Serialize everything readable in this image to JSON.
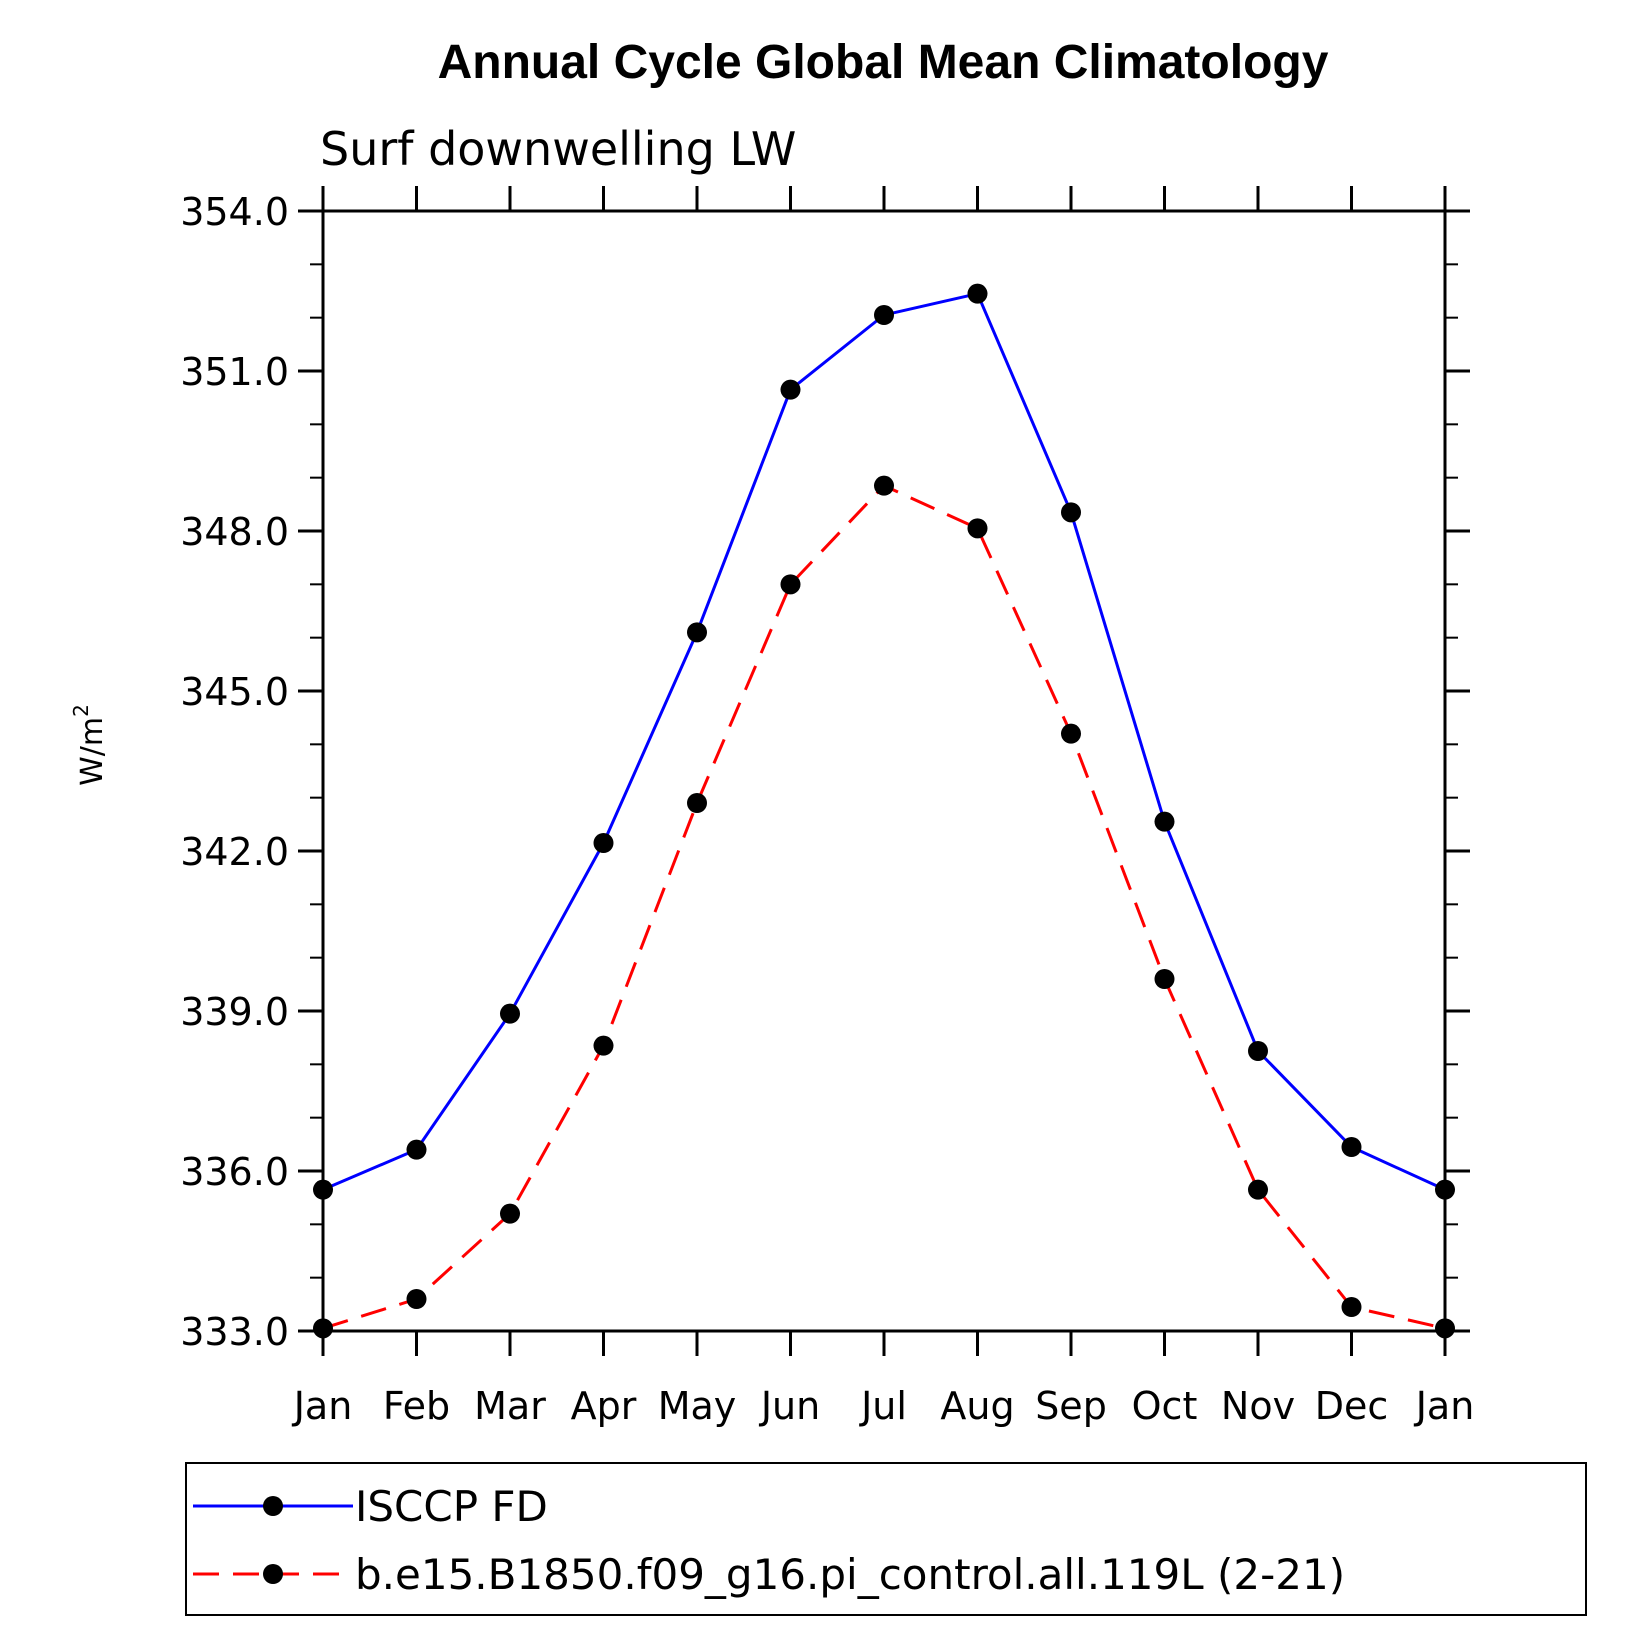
{
  "chart_data": {
    "type": "line",
    "title": "Annual Cycle Global Mean Climatology",
    "subtitle": "Surf downwelling LW",
    "ylabel": "W/m",
    "ylabel_superscript": "2",
    "xlabel": "",
    "categories": [
      "Jan",
      "Feb",
      "Mar",
      "Apr",
      "May",
      "Jun",
      "Jul",
      "Aug",
      "Sep",
      "Oct",
      "Nov",
      "Dec",
      "Jan"
    ],
    "ylim": [
      333.0,
      354.0
    ],
    "yticks": [
      "333.0",
      "336.0",
      "339.0",
      "342.0",
      "345.0",
      "348.0",
      "351.0",
      "354.0"
    ],
    "yticks_values": [
      333,
      336,
      339,
      342,
      345,
      348,
      351,
      354
    ],
    "y_minor_step": 1,
    "grid": false,
    "legend_position": "bottom",
    "series": [
      {
        "name": "ISCCP FD",
        "color": "#0000ff",
        "dash": "solid",
        "marker": "filled-circle",
        "values": [
          335.65,
          336.4,
          338.95,
          342.15,
          346.1,
          350.65,
          352.05,
          352.45,
          348.35,
          342.55,
          338.25,
          336.45,
          335.65
        ]
      },
      {
        "name": "b.e15.B1850.f09_g16.pi_control.all.119L (2-21)",
        "color": "#ff0000",
        "dash": "dashed",
        "marker": "filled-circle",
        "values": [
          333.05,
          333.6,
          335.2,
          338.35,
          342.9,
          347.0,
          348.85,
          348.05,
          344.2,
          339.6,
          335.65,
          333.45,
          333.05
        ]
      }
    ]
  }
}
